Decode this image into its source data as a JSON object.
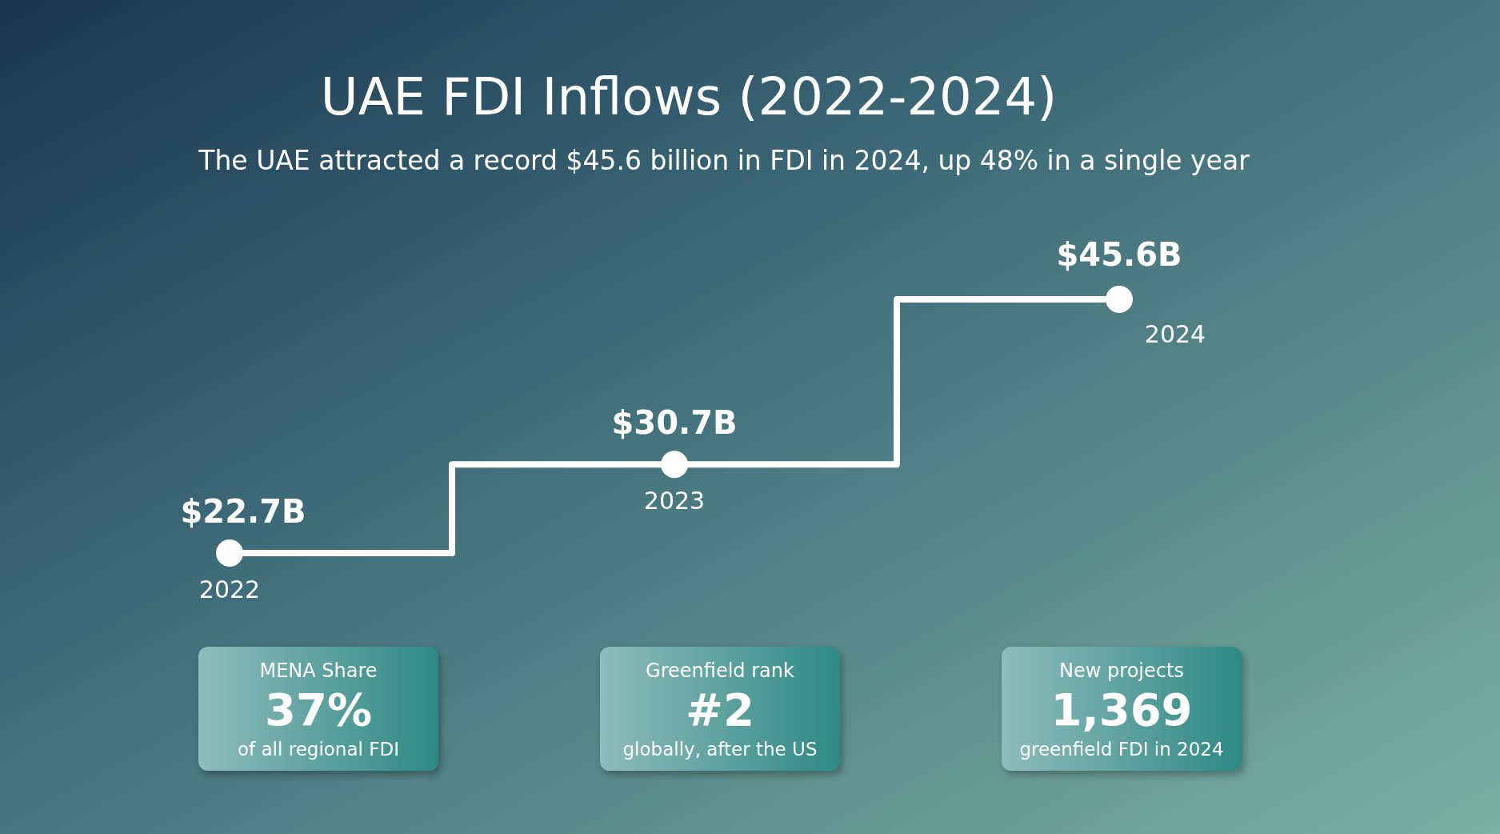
{
  "chart_data": [
    {
      "type": "step",
      "title": "UAE FDI Inflows (2022-2024)",
      "subtitle": "The UAE attracted a record $45.6 billion in FDI in 2024, up 48% in a single year",
      "categories": [
        "2022",
        "2023",
        "2024"
      ],
      "values": [
        22.7,
        30.7,
        45.6
      ],
      "value_labels": [
        "$22.7B",
        "$30.7B",
        "$45.6B"
      ],
      "color": "#ffffff",
      "marker": "circle"
    },
    {
      "type": "other",
      "title": "MENA Share",
      "annotations": [
        "37%",
        "of all regional FDI"
      ]
    },
    {
      "type": "other",
      "title": "Greenfield rank",
      "annotations": [
        "#2",
        "globally, after the US"
      ]
    },
    {
      "type": "other",
      "title": "New projects",
      "annotations": [
        "1,369",
        "greenfield FDI in 2024"
      ]
    }
  ]
}
